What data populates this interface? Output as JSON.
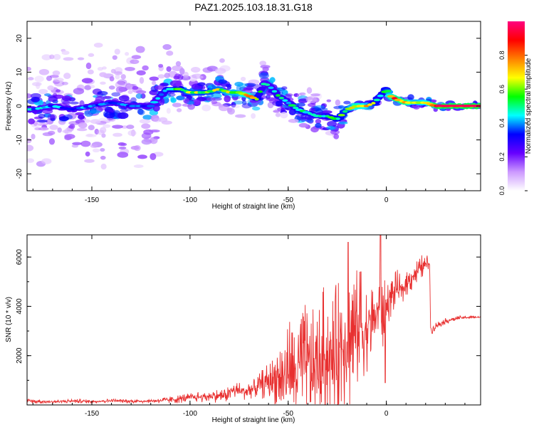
{
  "title": "PAZ1.2025.103.18.31.G18",
  "chart_data": [
    {
      "type": "heatmap",
      "title": "PAZ1.2025.103.18.31.G18",
      "xlabel": "Height of straight line (km)",
      "ylabel": "Frequency (Hz)",
      "xlim": [
        -183,
        48
      ],
      "ylim": [
        -25,
        25
      ],
      "xticks": [
        -150,
        -100,
        -50,
        0
      ],
      "xtick_labels": [
        "-150",
        "-100",
        "-50",
        "0"
      ],
      "yticks": [
        -20,
        -10,
        0,
        10,
        20
      ],
      "ytick_labels": [
        "-20",
        "-10",
        "0",
        "10",
        "20"
      ],
      "colorbar": {
        "label": "Normalized spectral amplitude",
        "range": [
          0,
          1
        ],
        "ticks": [
          0,
          0.2,
          0.4,
          0.6,
          0.8
        ],
        "tick_labels": [
          "0.0",
          "0.2",
          "0.4",
          "0.6",
          "0.8"
        ],
        "colors": [
          "#ffffff",
          "#cc99ff",
          "#6600ff",
          "#0000ff",
          "#00ffff",
          "#00ff00",
          "#ffff00",
          "#ff8000",
          "#ff0000",
          "#ff0080"
        ]
      },
      "ridge": {
        "x": [
          -180,
          -170,
          -160,
          -150,
          -140,
          -130,
          -120,
          -112,
          -105,
          -100,
          -92,
          -85,
          -80,
          -75,
          -70,
          -66,
          -62,
          -58,
          -55,
          -50,
          -45,
          -40,
          -35,
          -30,
          -25,
          -20,
          -15,
          -10,
          -6,
          -3,
          0,
          2,
          5,
          10,
          15,
          20,
          25,
          30,
          40,
          48
        ],
        "freq_hz": [
          -1,
          0,
          -1,
          0,
          1,
          0,
          0,
          5,
          5,
          4,
          4,
          5,
          4,
          4,
          3,
          2,
          7,
          5,
          3,
          1,
          -1,
          -2,
          -3,
          -3,
          -4,
          -1,
          0,
          0,
          1,
          3,
          5,
          3,
          2,
          1,
          1,
          1,
          0,
          0,
          0,
          0
        ],
        "amplitude": [
          0.45,
          0.45,
          0.4,
          0.45,
          0.4,
          0.4,
          0.4,
          0.55,
          0.6,
          0.7,
          0.65,
          0.7,
          0.75,
          0.75,
          0.85,
          0.6,
          0.45,
          0.5,
          0.55,
          0.5,
          0.55,
          0.55,
          0.5,
          0.55,
          0.6,
          0.65,
          0.85,
          0.8,
          0.6,
          0.55,
          0.6,
          0.85,
          0.9,
          0.9,
          0.75,
          0.8,
          0.95,
          0.95,
          0.95,
          0.95
        ]
      },
      "noise_spread_hz": [
        {
          "x_range": [
            -183,
            -110
          ],
          "spread": 22
        },
        {
          "x_range": [
            -110,
            -60
          ],
          "spread": 10
        },
        {
          "x_range": [
            -60,
            -20
          ],
          "spread": 8
        },
        {
          "x_range": [
            -20,
            48
          ],
          "spread": 2
        }
      ]
    },
    {
      "type": "line",
      "xlabel": "Height of straight line (km)",
      "ylabel": "SNR (10 * v/v)",
      "xlim": [
        -183,
        48
      ],
      "ylim": [
        0,
        6900
      ],
      "xticks": [
        -150,
        -100,
        -50,
        0
      ],
      "xtick_labels": [
        "-150",
        "-100",
        "-50",
        "0"
      ],
      "yticks": [
        2000,
        4000,
        6000
      ],
      "ytick_labels": [
        "2000",
        "4000",
        "6000"
      ],
      "color": "#e83030",
      "series": [
        {
          "name": "SNR",
          "x": [
            -183,
            -170,
            -160,
            -150,
            -140,
            -130,
            -120,
            -110,
            -100,
            -90,
            -82,
            -78,
            -72,
            -66,
            -62,
            -58,
            -55,
            -52,
            -50,
            -46,
            -44,
            -40,
            -38,
            -36,
            -34,
            -31,
            -28,
            -25,
            -22,
            -20,
            -19,
            -18,
            -16,
            -14,
            -12,
            -10,
            -8,
            -6,
            -4,
            -2,
            -1,
            0,
            1,
            2,
            4,
            6,
            8,
            10,
            12,
            14,
            16,
            18,
            20,
            22,
            22.5,
            23,
            25,
            30,
            35,
            40,
            48
          ],
          "y": [
            150,
            130,
            160,
            140,
            170,
            150,
            160,
            200,
            300,
            350,
            380,
            600,
            550,
            700,
            900,
            1000,
            1200,
            1100,
            1500,
            1200,
            1600,
            1700,
            1300,
            1800,
            1500,
            2200,
            1700,
            2000,
            2600,
            2800,
            2200,
            3000,
            2900,
            3200,
            3000,
            3100,
            3400,
            3600,
            3800,
            3300,
            3500,
            4000,
            4200,
            4300,
            4600,
            4800,
            4500,
            5000,
            5100,
            5300,
            5400,
            5600,
            5700,
            5800,
            3200,
            3000,
            3200,
            3400,
            3500,
            3550,
            3560
          ],
          "spread": [
            100,
            80,
            80,
            80,
            80,
            80,
            80,
            150,
            200,
            250,
            300,
            350,
            350,
            400,
            700,
            900,
            1400,
            1600,
            2200,
            2000,
            2600,
            2400,
            2300,
            2700,
            2600,
            3000,
            2800,
            3000,
            2800,
            3300,
            3000,
            3000,
            2600,
            2400,
            2000,
            1800,
            1600,
            1300,
            1300,
            1500,
            1600,
            1000,
            900,
            800,
            800,
            700,
            600,
            600,
            600,
            600,
            500,
            500,
            400,
            300,
            150,
            150,
            150,
            120,
            100,
            80,
            80
          ]
        }
      ],
      "peaks": [
        {
          "x": -19.5,
          "y": 6600
        },
        {
          "x": -13,
          "y": 5400
        },
        {
          "x": -3,
          "y": 6900
        },
        {
          "x": -0.5,
          "y": 900
        }
      ]
    }
  ]
}
